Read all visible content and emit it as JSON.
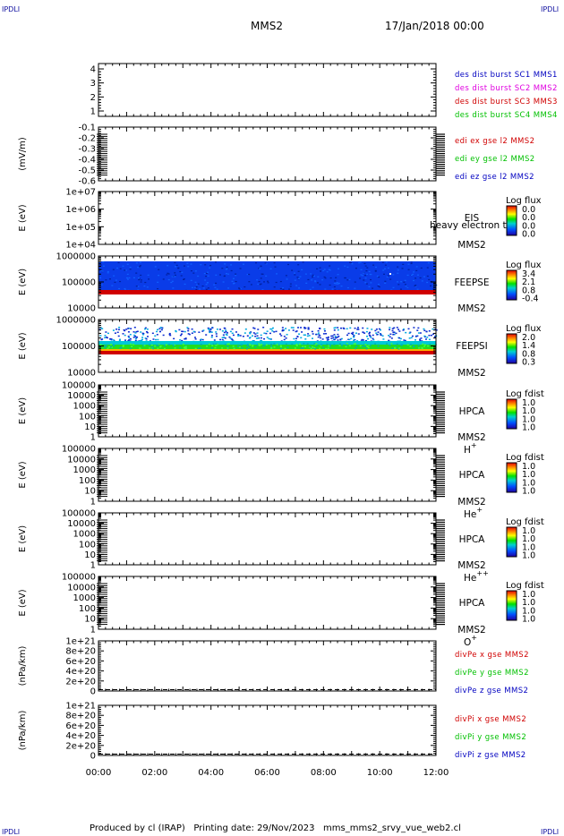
{
  "corners": {
    "tl": "IPDLI",
    "tr": "IPDLI",
    "bl": "IPDLI",
    "br": "IPDLI"
  },
  "header": {
    "title": "MMS2",
    "date": "17/Jan/2018 00:00"
  },
  "footer": {
    "text": "Produced by cl (IRAP)   Printing date: 29/Nov/2023   mms_mms2_srvy_vue_web2.cl"
  },
  "colors": {
    "red": "#d00000",
    "magenta": "#e000e0",
    "blue": "#0000c0",
    "green": "#00c000"
  },
  "x_axis": {
    "ticks": [
      "00:00",
      "02:00",
      "04:00",
      "06:00",
      "08:00",
      "10:00",
      "12:00"
    ]
  },
  "chart_data": [
    {
      "type": "line",
      "ylabel": "",
      "yticks": [
        "4",
        "3",
        "2",
        "1"
      ],
      "ylim": [
        0.6,
        4.4
      ],
      "series": [],
      "legend": [
        {
          "text": "des dist burst SC1 MMS1",
          "color": "#0000c0"
        },
        {
          "text": "des dist burst SC2 MMS2",
          "color": "#e000e0"
        },
        {
          "text": "des dist burst SC3 MMS3",
          "color": "#d00000"
        },
        {
          "text": "des dist burst SC4 MMS4",
          "color": "#00c000"
        }
      ]
    },
    {
      "type": "line",
      "ylabel": "(mV/m)",
      "yticks": [
        "-0.1",
        "-0.2",
        "-0.3",
        "-0.4",
        "-0.5",
        "-0.6"
      ],
      "series": [],
      "legend": [
        {
          "text": "edi ex gse l2 MMS2",
          "color": "#d00000"
        },
        {
          "text": "edi ey gse l2 MMS2",
          "color": "#00c000"
        },
        {
          "text": "edi ez gse l2 MMS2",
          "color": "#0000c0"
        }
      ]
    },
    {
      "type": "heatmap",
      "ylabel": "E (eV)",
      "yticks": [
        "1e+07",
        "1e+06",
        "1e+05",
        "1e+04"
      ],
      "log": true,
      "instrument": "EIS",
      "overlay_text": "heavy electron tof",
      "spacecraft": "MMS2",
      "colorbar": {
        "title": "Log flux",
        "values": [
          "0.0",
          "0.0",
          "0.0",
          "0.0"
        ]
      }
    },
    {
      "type": "heatmap",
      "ylabel": "E (eV)",
      "yticks": [
        "1000000",
        "100000",
        "10000"
      ],
      "log": true,
      "instrument": "FEEPSE",
      "spacecraft": "MMS2",
      "colorbar": {
        "title": "Log flux",
        "values": [
          "3.4",
          "2.1",
          "0.8",
          "-0.4"
        ]
      }
    },
    {
      "type": "heatmap",
      "ylabel": "E (eV)",
      "yticks": [
        "1000000",
        "100000",
        "10000"
      ],
      "log": true,
      "instrument": "FEEPSI",
      "spacecraft": "MMS2",
      "colorbar": {
        "title": "Log flux",
        "values": [
          "2.0",
          "1.4",
          "0.8",
          "0.3"
        ]
      }
    },
    {
      "type": "heatmap",
      "ylabel": "E (eV)",
      "yticks": [
        "100000",
        "10000",
        "1000",
        "100",
        "10",
        "1"
      ],
      "log": true,
      "instrument": "HPCA",
      "spacecraft": "MMS2",
      "species": "H",
      "charge": "+",
      "colorbar": {
        "title": "Log fdist",
        "values": [
          "1.0",
          "1.0",
          "1.0",
          "1.0"
        ]
      }
    },
    {
      "type": "heatmap",
      "ylabel": "E (eV)",
      "yticks": [
        "100000",
        "10000",
        "1000",
        "100",
        "10",
        "1"
      ],
      "log": true,
      "instrument": "HPCA",
      "spacecraft": "MMS2",
      "species": "He",
      "charge": "+",
      "colorbar": {
        "title": "Log fdist",
        "values": [
          "1.0",
          "1.0",
          "1.0",
          "1.0"
        ]
      }
    },
    {
      "type": "heatmap",
      "ylabel": "E (eV)",
      "yticks": [
        "100000",
        "10000",
        "1000",
        "100",
        "10",
        "1"
      ],
      "log": true,
      "instrument": "HPCA",
      "spacecraft": "MMS2",
      "species": "He",
      "charge": "++",
      "colorbar": {
        "title": "Log fdist",
        "values": [
          "1.0",
          "1.0",
          "1.0",
          "1.0"
        ]
      }
    },
    {
      "type": "heatmap",
      "ylabel": "E (eV)",
      "yticks": [
        "100000",
        "10000",
        "1000",
        "100",
        "10",
        "1"
      ],
      "log": true,
      "instrument": "HPCA",
      "spacecraft": "MMS2",
      "species": "O",
      "charge": "+",
      "colorbar": {
        "title": "Log fdist",
        "values": [
          "1.0",
          "1.0",
          "1.0",
          "1.0"
        ]
      }
    },
    {
      "type": "line",
      "ylabel": "(nPa/km)",
      "yticks": [
        "1e+21",
        "8e+20",
        "6e+20",
        "4e+20",
        "2e+20",
        "0"
      ],
      "ylim": [
        0,
        1.1e+21
      ],
      "zero_line": 0,
      "series": [],
      "legend": [
        {
          "text": "divPe x gse MMS2",
          "color": "#d00000"
        },
        {
          "text": "divPe y gse MMS2",
          "color": "#00c000"
        },
        {
          "text": "divPe z gse MMS2",
          "color": "#0000c0"
        }
      ]
    },
    {
      "type": "line",
      "ylabel": "(nPa/km)",
      "yticks": [
        "1e+21",
        "8e+20",
        "6e+20",
        "4e+20",
        "2e+20",
        "0"
      ],
      "ylim": [
        0,
        1.1e+21
      ],
      "zero_line": 0,
      "series": [],
      "legend": [
        {
          "text": "divPi x gse MMS2",
          "color": "#d00000"
        },
        {
          "text": "divPi y gse MMS2",
          "color": "#00c000"
        },
        {
          "text": "divPi z gse MMS2",
          "color": "#0000c0"
        }
      ]
    }
  ]
}
